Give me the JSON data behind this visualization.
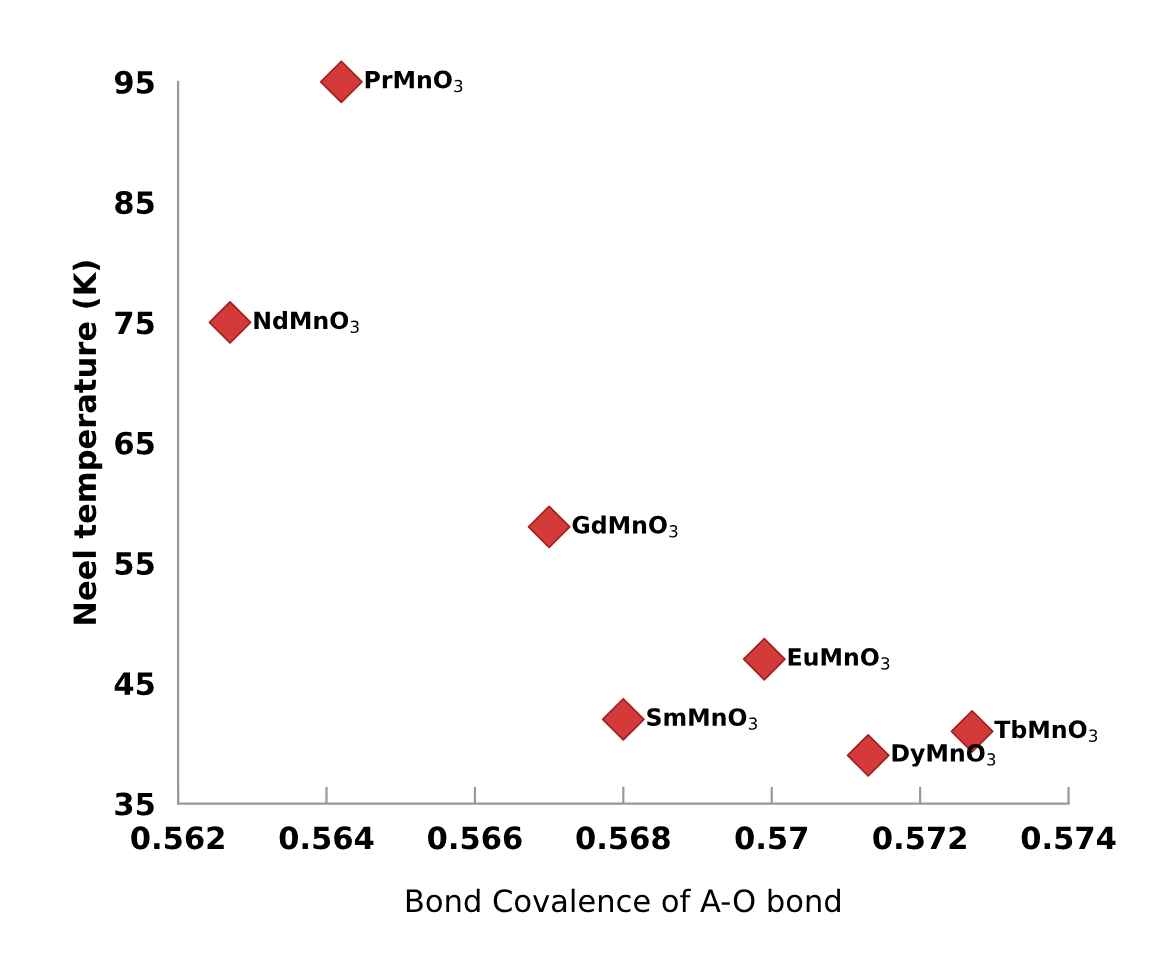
{
  "chart_data": {
    "type": "scatter",
    "xlabel": "Bond Covalence of A-O bond",
    "ylabel": "Neel temperature (K)",
    "x": [
      0.5642,
      0.5627,
      0.567,
      0.568,
      0.5699,
      0.5713,
      0.5727
    ],
    "series": [
      {
        "color": "#d43a3a",
        "values": [
          95,
          75,
          58,
          42,
          47,
          39,
          41
        ]
      }
    ],
    "marker": "diamond",
    "grid": false,
    "legend": false,
    "xlim": [
      0.562,
      0.574
    ],
    "xticks": [
      0.562,
      0.564,
      0.566,
      0.568,
      0.57,
      0.572,
      0.574
    ],
    "ylim": [
      35,
      95
    ],
    "yticks": [
      35,
      45,
      55,
      65,
      75,
      85,
      95
    ],
    "annotations": [
      {
        "text": "PrMnO$_{3}$",
        "x": 0.5642,
        "y": 95
      },
      {
        "text": "NdMnO$_{3}$",
        "x": 0.5627,
        "y": 75
      },
      {
        "text": "GdMnO$_{3}$",
        "x": 0.567,
        "y": 58
      },
      {
        "text": "SmMnO$_{3}$",
        "x": 0.568,
        "y": 42
      },
      {
        "text": "EuMnO$_{3}$",
        "x": 0.5699,
        "y": 47
      },
      {
        "text": "DyMnO$_{3}$",
        "x": 0.5713,
        "y": 39
      },
      {
        "text": "TbMnO$_{3}$",
        "x": 0.5727,
        "y": 41
      }
    ]
  }
}
